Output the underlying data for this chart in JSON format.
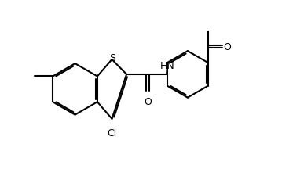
{
  "background_color": "#ffffff",
  "line_color": "#000000",
  "line_width": 1.5,
  "figsize": [
    3.92,
    2.26
  ],
  "dpi": 100,
  "xlim": [
    0,
    10
  ],
  "ylim": [
    0,
    6
  ]
}
